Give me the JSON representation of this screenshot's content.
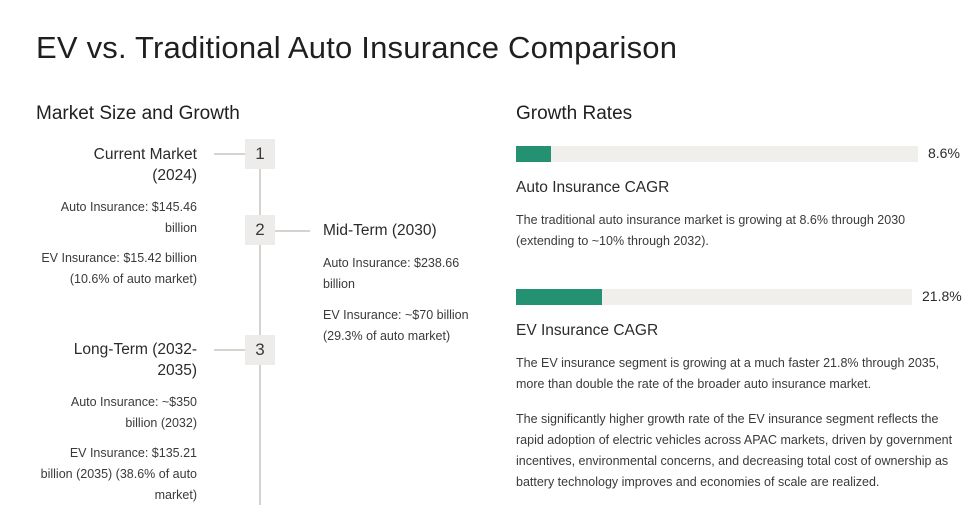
{
  "title": "EV vs. Traditional Auto Insurance Comparison",
  "market": {
    "heading": "Market Size and Growth",
    "stages": [
      {
        "number": "1",
        "title": "Current Market (2024)",
        "auto": "Auto Insurance: $145.46 billion",
        "ev": "EV Insurance: $15.42 billion (10.6% of auto market)"
      },
      {
        "number": "2",
        "title": "Mid-Term (2030)",
        "auto": "Auto Insurance: $238.66 billion",
        "ev": "EV Insurance: ~$70 billion (29.3% of auto market)"
      },
      {
        "number": "3",
        "title": "Long-Term (2032-2035)",
        "auto": "Auto Insurance: ~$350 billion (2032)",
        "ev": "EV Insurance: $135.21 billion (2035) (38.6% of auto market)"
      }
    ]
  },
  "growth": {
    "heading": "Growth Rates",
    "rates": [
      {
        "label": "Auto Insurance CAGR",
        "value_text": "8.6%",
        "value": 8.6,
        "description": "The traditional auto insurance market is growing at 8.6% through 2030 (extending to ~10% through 2032)."
      },
      {
        "label": "EV Insurance CAGR",
        "value_text": "21.8%",
        "value": 21.8,
        "description": "The EV insurance segment is growing at a much faster 21.8% through 2035, more than double the rate of the broader auto insurance market."
      }
    ],
    "summary": "The significantly higher growth rate of the EV insurance segment reflects the rapid adoption of electric vehicles across APAC markets, driven by government incentives, environmental concerns, and decreasing total cost of ownership as battery technology improves and economies of scale are realized.",
    "bar_color": "#249272",
    "track_color": "#f1efec"
  }
}
